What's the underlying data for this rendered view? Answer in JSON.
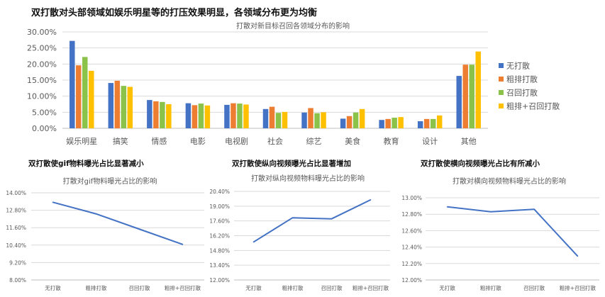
{
  "headline": "双打散对头部领域如娱乐明星等的打压效果明显，各领域分布更为均衡",
  "colors": {
    "series": [
      "#4472C4",
      "#ED7D31",
      "#8BC34A",
      "#FFC000"
    ],
    "line": "#4472C4",
    "grid": "#d9d9d9",
    "axis_text": "#595959",
    "title_text": "#595959"
  },
  "sections": [
    {
      "title": "双打散使gif物料曝光占比显著减小"
    },
    {
      "title": "双打散使纵向视频曝光占比显著增加"
    },
    {
      "title": "双打散使横向视频曝光占比有所减小"
    }
  ],
  "chart_data": [
    {
      "type": "bar",
      "title": "打散对新目标召回各领域分布的影响",
      "categories": [
        "娱乐明星",
        "搞笑",
        "情感",
        "电影",
        "电视剧",
        "社会",
        "综艺",
        "美食",
        "教育",
        "设计",
        "其他"
      ],
      "series": [
        {
          "name": "无打散",
          "values": [
            27.2,
            14.1,
            8.8,
            7.8,
            7.3,
            6.0,
            4.9,
            3.0,
            2.6,
            2.2,
            16.3
          ]
        },
        {
          "name": "粗排打散",
          "values": [
            19.6,
            14.8,
            8.4,
            7.2,
            7.8,
            6.7,
            6.3,
            3.8,
            2.9,
            2.9,
            19.8
          ]
        },
        {
          "name": "召回打散",
          "values": [
            22.2,
            13.2,
            8.2,
            7.7,
            7.7,
            4.8,
            4.7,
            4.9,
            3.3,
            2.9,
            19.8
          ]
        },
        {
          "name": "粗排+召回打散",
          "values": [
            17.9,
            12.9,
            7.5,
            7.1,
            7.4,
            5.1,
            5.0,
            6.0,
            3.5,
            4.0,
            23.9
          ]
        }
      ],
      "ylim": [
        0,
        30
      ],
      "yticks": [
        "0.00%",
        "5.00%",
        "10.00%",
        "15.00%",
        "20.00%",
        "25.00%",
        "30.00%"
      ],
      "legend": "right",
      "grid": true
    },
    {
      "type": "line",
      "title": "打散对gif物料曝光占比的影响",
      "categories": [
        "无打散",
        "粗排打散",
        "召回打散",
        "粗排+召回打散"
      ],
      "values": [
        13.35,
        12.55,
        11.5,
        10.45
      ],
      "ylim": [
        8,
        14
      ],
      "yticks": [
        "8.00%",
        "9.20%",
        "10.40%",
        "11.60%",
        "12.80%",
        "14.00%"
      ],
      "grid": true
    },
    {
      "type": "line",
      "title": "打散对纵向视频物料曝光占比的影响",
      "categories": [
        "无打散",
        "粗排打散",
        "召回打散",
        "粗排+召回打散"
      ],
      "values": [
        15.6,
        17.9,
        17.8,
        19.6
      ],
      "ylim": [
        12,
        20.4
      ],
      "yticks": [
        "12.00%",
        "13.40%",
        "14.80%",
        "16.20%",
        "17.60%",
        "19.00%",
        "20.40%"
      ],
      "grid": true
    },
    {
      "type": "line",
      "title": "打散对横向视频物料曝光占比的影响",
      "categories": [
        "无打散",
        "粗排打散",
        "召回打散",
        "粗排+召回打散"
      ],
      "values": [
        12.89,
        12.83,
        12.86,
        12.29
      ],
      "ylim": [
        12.0,
        13.0
      ],
      "yticks": [
        "12.00%",
        "12.20%",
        "12.40%",
        "12.60%",
        "12.80%",
        "13.00%"
      ],
      "grid": true
    }
  ]
}
